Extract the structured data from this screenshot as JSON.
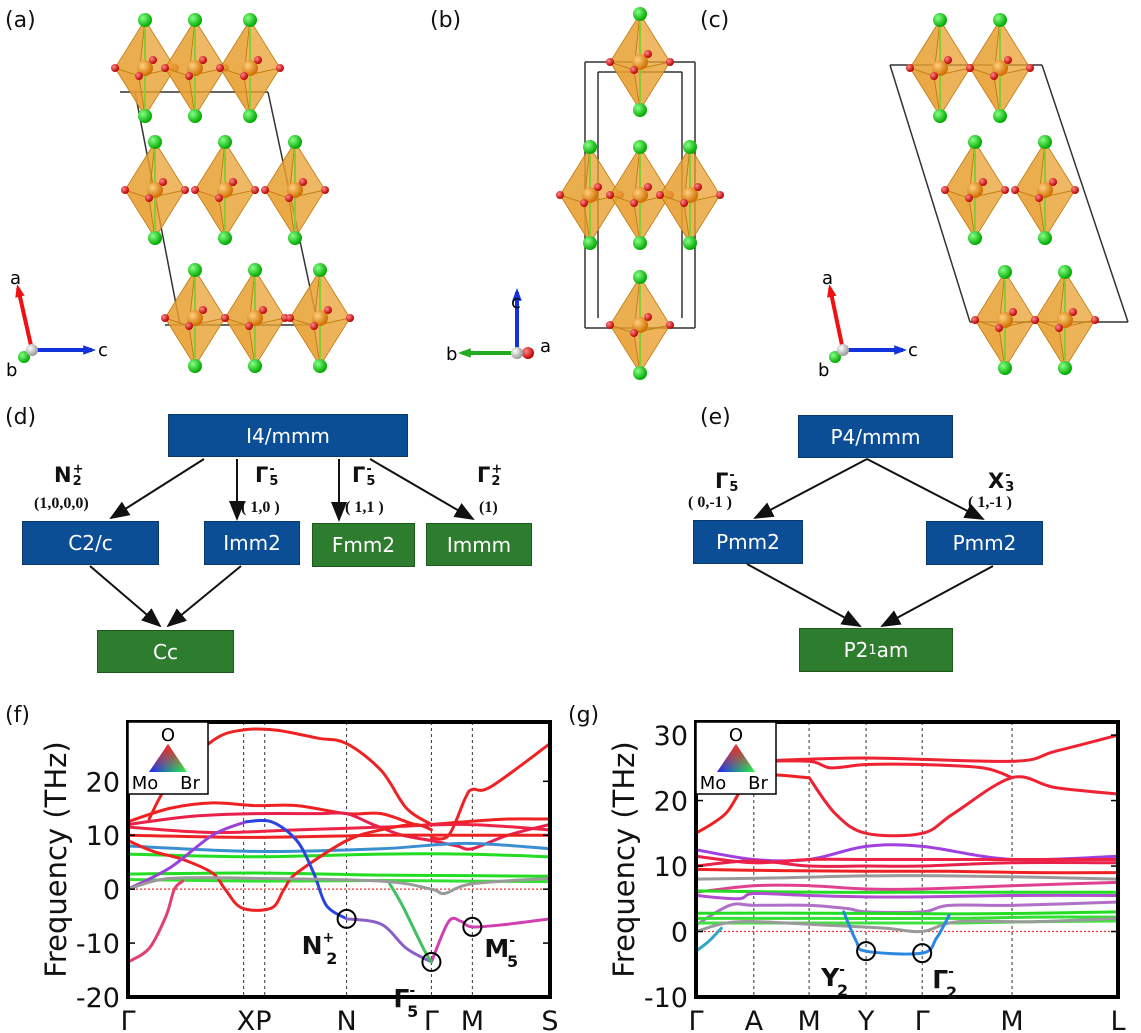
{
  "panels": {
    "a": "(a)",
    "b": "(b)",
    "c": "(c)",
    "d": "(d)",
    "e": "(e)",
    "f": "(f)",
    "g": "(g)"
  },
  "structures": {
    "a": {
      "axis_up": "a",
      "axis_right": "c",
      "axis_down": "b"
    },
    "b": {
      "axis_up": "c",
      "axis_left": "b",
      "axis_right": "a"
    },
    "c": {
      "axis_up": "a",
      "axis_right": "c",
      "axis_down": "b"
    }
  },
  "colors": {
    "node_blue": "#0b4e96",
    "node_green": "#2e7d2e",
    "octahedron": "#e8a030",
    "O_atom": "#dd1111",
    "Br_atom": "#22cc22"
  },
  "diagram_d": {
    "nodes": {
      "parent": "I4/mmm",
      "c2c": "C2/c",
      "imm2": "Imm2",
      "fmm2": "Fmm2",
      "immm": "Immm",
      "cc": "Cc"
    },
    "irreps": [
      {
        "base": "N",
        "sub": "2",
        "sup": "+",
        "amp": "(1,0,0,0)"
      },
      {
        "base": "Γ",
        "sub": "5",
        "sup": "-",
        "amp": "( 1,0 )"
      },
      {
        "base": "Γ",
        "sub": "5",
        "sup": "-",
        "amp": "( 1,1 )"
      },
      {
        "base": "Γ",
        "sub": "2",
        "sup": "+",
        "amp": "(1)"
      }
    ]
  },
  "diagram_e": {
    "nodes": {
      "parent": "P4/mmm",
      "left": "Pmm2",
      "right": "Pmm2",
      "bottom_pre": "P2",
      "bottom_sub": "1",
      "bottom_post": "am"
    },
    "irreps": [
      {
        "base": "Γ",
        "sub": "5",
        "sup": "-",
        "amp": "( 0,-1 )"
      },
      {
        "base": "X",
        "sub": "3",
        "sup": "-",
        "amp": "( 1,-1 )"
      }
    ]
  },
  "chart_data": [
    {
      "type": "line",
      "ylabel": "Frequency (THz)",
      "ylim": [
        -20,
        31
      ],
      "yticks": [
        -20,
        -10,
        0,
        10,
        20
      ],
      "kpoints": [
        {
          "label": "Γ",
          "k": 0
        },
        {
          "label": "X",
          "k": 0.274
        },
        {
          "label": "P",
          "k": 0.324
        },
        {
          "label": "N",
          "k": 0.518
        },
        {
          "label": "Γ",
          "k": 0.719
        },
        {
          "label": "M",
          "k": 0.816
        },
        {
          "label": "S",
          "k": 1
        }
      ],
      "xtick_labels": [
        {
          "label": "Γ",
          "k": 0
        },
        {
          "label": "XP",
          "k": 0.299
        },
        {
          "label": "N",
          "k": 0.518
        },
        {
          "label": "Γ",
          "k": 0.719
        },
        {
          "label": "M",
          "k": 0.816
        },
        {
          "label": "S",
          "k": 1
        }
      ],
      "zero_line": true,
      "legend": {
        "top": "O",
        "left": "Mo",
        "right": "Br",
        "placement": "top-left"
      },
      "bands": [
        {
          "k": [
            0.05,
            0.1,
            0.2,
            0.27,
            0.35,
            0.45,
            0.518,
            0.6,
            0.66,
            0.719
          ],
          "f": [
            13,
            20,
            27.5,
            29.5,
            29.5,
            28,
            27,
            22,
            15,
            12
          ],
          "color": "#ee2222"
        },
        {
          "k": [
            0.719,
            0.76,
            0.8,
            0.816,
            0.86,
            1
          ],
          "f": [
            9.5,
            10,
            17,
            18.5,
            19,
            27
          ],
          "color": "#ee2222"
        },
        {
          "k": [
            0,
            0.1,
            0.2,
            0.3,
            0.4,
            0.518,
            0.6,
            0.68,
            0.719,
            0.8,
            0.9,
            1
          ],
          "f": [
            12.5,
            15,
            16,
            15.5,
            15.5,
            14,
            14,
            12,
            12,
            12.5,
            13,
            13
          ],
          "color": "#ee2222"
        },
        {
          "k": [
            0,
            0.15,
            0.3,
            0.45,
            0.518,
            0.58,
            0.65,
            0.719,
            0.78,
            0.816,
            0.9,
            1
          ],
          "f": [
            12,
            13.5,
            14,
            14,
            14,
            12,
            10,
            9,
            8,
            7.5,
            10,
            12
          ],
          "color": "#e8204a"
        },
        {
          "k": [
            0,
            0.3,
            0.6,
            0.8,
            1
          ],
          "f": [
            10,
            9.6,
            10,
            10,
            10
          ],
          "color": "#ee2222"
        },
        {
          "k": [
            0,
            0.2,
            0.4,
            0.6,
            0.8,
            1
          ],
          "f": [
            11.5,
            10.5,
            11,
            11.5,
            12,
            11
          ],
          "color": "#ee2244"
        },
        {
          "k": [
            0,
            0.3,
            0.6,
            0.8,
            1
          ],
          "f": [
            8,
            7,
            7.5,
            8.5,
            7.5
          ],
          "color": "#3a8fd0"
        },
        {
          "k": [
            0,
            0.3,
            0.6,
            0.8,
            1
          ],
          "f": [
            6.5,
            6,
            6.5,
            6.5,
            6
          ],
          "color": "#22dd22"
        },
        {
          "k": [
            0,
            0.3,
            0.6,
            0.8,
            1
          ],
          "f": [
            2.8,
            3,
            2.6,
            2.5,
            2.4
          ],
          "color": "#22dd22"
        },
        {
          "k": [
            0,
            0.3,
            0.6,
            0.8,
            1
          ],
          "f": [
            1.8,
            1.5,
            1.6,
            1.5,
            1.4
          ],
          "color": "#33e033"
        },
        {
          "k": [
            0,
            0.06,
            0.13,
            0.2,
            0.23,
            0.27,
            0.34,
            0.37,
            0.4,
            0.518,
            0.6,
            0.68,
            0.719
          ],
          "f": [
            9,
            7,
            5.5,
            3,
            0,
            -3.5,
            -3.5,
            0,
            3,
            9,
            11,
            12,
            11
          ],
          "color": "#ee2222"
        },
        {
          "k": [
            0,
            0.1,
            0.2,
            0.28
          ],
          "f": [
            0,
            4,
            10,
            12.5
          ],
          "color": "#9a40d8"
        },
        {
          "k": [
            0.28,
            0.34,
            0.4,
            0.44,
            0.47,
            0.518
          ],
          "f": [
            12.5,
            12.5,
            9,
            3,
            -3,
            -5.5
          ],
          "color": "#2a44e0"
        },
        {
          "k": [
            0.518,
            0.6,
            0.66,
            0.719
          ],
          "f": [
            -5.5,
            -6.5,
            -11,
            -13.5
          ],
          "color": "#8a60c8"
        },
        {
          "k": [
            0.719,
            0.76,
            0.79,
            0.816,
            0.9,
            1
          ],
          "f": [
            -13.5,
            -6,
            -6,
            -7,
            -6.5,
            -5.5
          ],
          "color": "#d040b0"
        },
        {
          "k": [
            0,
            0.05,
            0.09,
            0.11,
            0.13
          ],
          "f": [
            -13.5,
            -11,
            -5,
            0,
            1.5
          ],
          "color": "#e04070"
        },
        {
          "k": [
            0.62,
            0.65,
            0.7,
            0.719
          ],
          "f": [
            1,
            -3,
            -11,
            -13.5
          ],
          "color": "#40c060"
        },
        {
          "k": [
            0,
            0.1,
            0.3,
            0.6,
            0.719,
            0.75,
            0.816,
            1
          ],
          "f": [
            0,
            2,
            2,
            1.5,
            0,
            -0.8,
            1,
            2
          ],
          "color": "#9a9a9a"
        }
      ],
      "annotations": [
        {
          "k": 0.518,
          "f": -5.5,
          "base": "N",
          "sub": "2",
          "sup": "+"
        },
        {
          "k": 0.719,
          "f": -13.5,
          "base": "Γ",
          "sub": "5",
          "sup": "-"
        },
        {
          "k": 0.816,
          "f": -7,
          "base": "M",
          "sub": "5",
          "sup": "-"
        }
      ]
    },
    {
      "type": "line",
      "ylabel": "Frequency (THz)",
      "ylim": [
        -10,
        32
      ],
      "yticks": [
        -10,
        0,
        10,
        20,
        30
      ],
      "kpoints": [
        {
          "label": "Γ",
          "k": 0
        },
        {
          "label": "A",
          "k": 0.137
        },
        {
          "label": "M",
          "k": 0.268
        },
        {
          "label": "Y",
          "k": 0.403
        },
        {
          "label": "Γ",
          "k": 0.536
        },
        {
          "label": "M",
          "k": 0.749
        },
        {
          "label": "L",
          "k": 1
        }
      ],
      "xtick_labels": [
        {
          "label": "Γ",
          "k": 0
        },
        {
          "label": "A",
          "k": 0.137
        },
        {
          "label": "M",
          "k": 0.268
        },
        {
          "label": "Y",
          "k": 0.403
        },
        {
          "label": "Γ",
          "k": 0.536
        },
        {
          "label": "M",
          "k": 0.749
        },
        {
          "label": "L",
          "k": 1
        }
      ],
      "zero_line": true,
      "legend": {
        "top": "O",
        "left": "Mo",
        "right": "Br",
        "placement": "top-left"
      },
      "bands": [
        {
          "k": [
            0,
            0.07,
            0.137,
            0.268
          ],
          "f": [
            15,
            18,
            23.5,
            23.5
          ],
          "color": "#ee2222"
        },
        {
          "k": [
            0.268,
            0.33,
            0.403,
            0.536,
            0.61,
            0.749,
            0.85,
            1
          ],
          "f": [
            23.5,
            18,
            15,
            15,
            18,
            23.5,
            22,
            21
          ],
          "color": "#ee2233"
        },
        {
          "k": [
            0.137,
            0.268,
            0.32,
            0.403,
            0.536,
            0.68,
            0.749
          ],
          "f": [
            26,
            26,
            25,
            25.5,
            25.5,
            25,
            23.5
          ],
          "color": "#ee2233"
        },
        {
          "k": [
            0.137,
            0.4,
            0.749,
            0.85,
            1
          ],
          "f": [
            26,
            26.5,
            26,
            27.5,
            30
          ],
          "color": "#ee2233"
        },
        {
          "k": [
            0,
            0.137,
            0.268,
            0.403,
            0.536,
            0.749,
            1
          ],
          "f": [
            12.5,
            11,
            11,
            13,
            13,
            11,
            11.5
          ],
          "color": "#a040e0"
        },
        {
          "k": [
            0,
            0.137,
            0.268,
            0.403,
            0.536,
            0.749,
            1
          ],
          "f": [
            11.5,
            10.5,
            11,
            11,
            11,
            11,
            11
          ],
          "color": "#ee2244"
        },
        {
          "k": [
            0,
            0.137,
            0.268,
            0.403,
            0.536,
            0.749,
            1
          ],
          "f": [
            10,
            10.8,
            10,
            10,
            10,
            10.5,
            10.5
          ],
          "color": "#e8204a"
        },
        {
          "k": [
            0,
            0.2,
            0.4,
            0.6,
            0.8,
            1
          ],
          "f": [
            9.5,
            9.3,
            9.2,
            9.2,
            9,
            9
          ],
          "color": "#ee2222"
        },
        {
          "k": [
            0,
            0.2,
            0.4,
            0.6,
            0.8,
            1
          ],
          "f": [
            8,
            8.2,
            8.5,
            8.5,
            8.3,
            8
          ],
          "color": "#9a9a9a"
        },
        {
          "k": [
            0,
            0.137,
            0.268,
            0.403,
            0.536,
            0.749,
            1
          ],
          "f": [
            6,
            7,
            7,
            6.5,
            6.5,
            7,
            7.5
          ],
          "color": "#e04090"
        },
        {
          "k": [
            0,
            0.3,
            0.6,
            0.8,
            1
          ],
          "f": [
            6.2,
            6,
            6,
            6,
            6
          ],
          "color": "#22dd22"
        },
        {
          "k": [
            0,
            0.1,
            0.137,
            0.268,
            0.403,
            0.536,
            0.749,
            1
          ],
          "f": [
            5.5,
            5,
            5.8,
            5.5,
            5.3,
            5.3,
            5.5,
            5.5
          ],
          "color": "#b050d0"
        },
        {
          "k": [
            0,
            0.08,
            0.137,
            0.268,
            0.36,
            0.403,
            0.536,
            0.6,
            0.749,
            1
          ],
          "f": [
            1,
            4,
            4,
            4,
            3.5,
            3,
            3,
            4,
            4,
            4.5
          ],
          "color": "#b070c8"
        },
        {
          "k": [
            0,
            0.3,
            0.6,
            0.8,
            1
          ],
          "f": [
            2.8,
            2.8,
            2.7,
            2.8,
            3
          ],
          "color": "#22dd22"
        },
        {
          "k": [
            0,
            0.3,
            0.6,
            0.8,
            1
          ],
          "f": [
            2,
            2,
            2,
            2.2,
            2.2
          ],
          "color": "#33e033"
        },
        {
          "k": [
            0,
            0.3,
            0.6,
            0.8,
            1
          ],
          "f": [
            1.3,
            1.3,
            1.3,
            1.5,
            1.6
          ],
          "color": "#40e040"
        },
        {
          "k": [
            0,
            0.1,
            0.3,
            0.45,
            0.536,
            0.62,
            0.8,
            1
          ],
          "f": [
            0,
            1.5,
            1,
            0.5,
            0,
            1.5,
            1.5,
            2
          ],
          "color": "#9a9a9a"
        },
        {
          "k": [
            0,
            0.03,
            0.06
          ],
          "f": [
            -3,
            -1.5,
            0.5
          ],
          "color": "#30a8c8"
        },
        {
          "k": [
            0.35,
            0.38,
            0.403,
            0.536,
            0.57,
            0.6
          ],
          "f": [
            3,
            -1.5,
            -3,
            -3.3,
            -1,
            2.5
          ],
          "color": "#2a88e0"
        }
      ],
      "annotations": [
        {
          "k": 0.403,
          "f": -3,
          "base": "Y",
          "sub": "2",
          "sup": "-"
        },
        {
          "k": 0.536,
          "f": -3.3,
          "base": "Γ",
          "sub": "2",
          "sup": "-"
        }
      ]
    }
  ]
}
